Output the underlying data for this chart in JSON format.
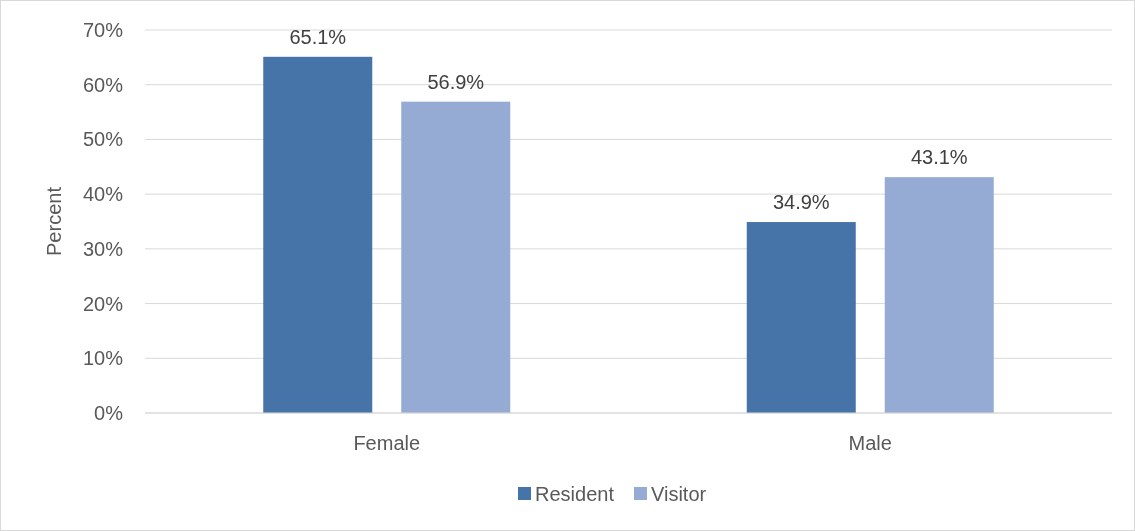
{
  "chart_data": {
    "type": "bar",
    "ylabel": "Percent",
    "categories": [
      "Female",
      "Male"
    ],
    "series": [
      {
        "name": "Resident",
        "color": "#4674a8",
        "values": [
          65.1,
          34.9
        ],
        "value_labels": [
          "65.1%",
          "34.9%"
        ]
      },
      {
        "name": "Visitor",
        "color": "#95abd3",
        "values": [
          56.9,
          43.1
        ],
        "value_labels": [
          "56.9%",
          "43.1%"
        ]
      }
    ],
    "ylim": [
      0,
      70
    ],
    "yticks": [
      {
        "value": 0,
        "label": "0%"
      },
      {
        "value": 10,
        "label": "10%"
      },
      {
        "value": 20,
        "label": "20%"
      },
      {
        "value": 30,
        "label": "30%"
      },
      {
        "value": 40,
        "label": "40%"
      },
      {
        "value": 50,
        "label": "50%"
      },
      {
        "value": 60,
        "label": "60%"
      },
      {
        "value": 70,
        "label": "70%"
      }
    ],
    "grid": "y",
    "legend": "bottom"
  }
}
